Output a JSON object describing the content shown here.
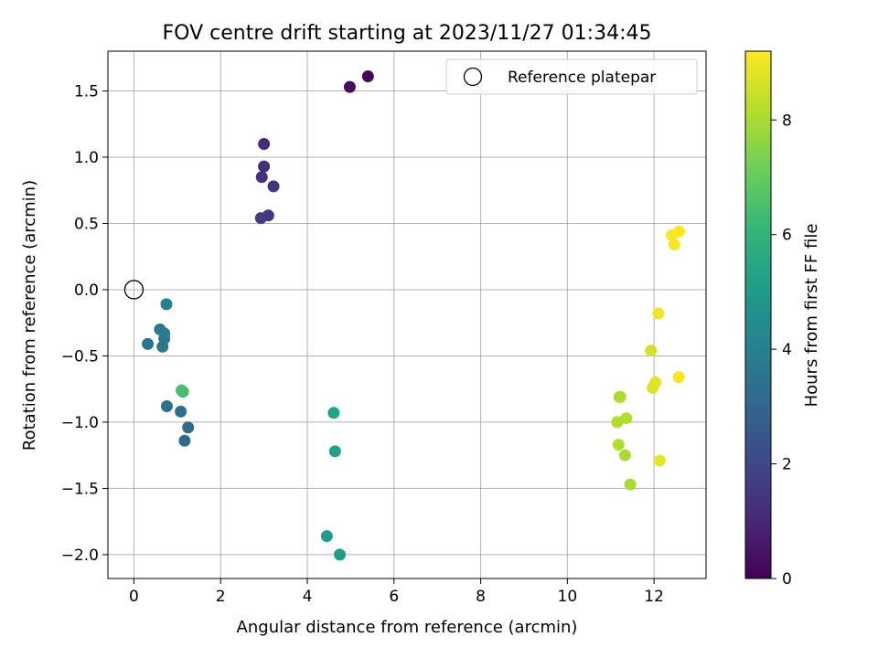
{
  "chart_data": {
    "type": "scatter",
    "title": "FOV centre drift starting at 2023/11/27 01:34:45",
    "xlabel": "Angular distance from reference (arcmin)",
    "ylabel": "Rotation from reference (arcmin)",
    "xlim": [
      -0.6,
      13.2
    ],
    "ylim": [
      -2.18,
      1.8
    ],
    "x_ticks": [
      0,
      2,
      4,
      6,
      8,
      10,
      12
    ],
    "y_ticks": [
      -2.0,
      -1.5,
      -1.0,
      -0.5,
      0.0,
      0.5,
      1.0,
      1.5
    ],
    "x_tick_labels": [
      "0",
      "2",
      "4",
      "6",
      "8",
      "10",
      "12"
    ],
    "y_tick_labels": [
      "−2.0",
      "−1.5",
      "−1.0",
      "−0.5",
      "0.0",
      "0.5",
      "1.0",
      "1.5"
    ],
    "grid": true,
    "legend": {
      "placement": "top-right",
      "entries": [
        {
          "label": "Reference platepar",
          "marker": "open-circle"
        }
      ]
    },
    "reference_point": {
      "x": 0,
      "y": 0
    },
    "colorbar": {
      "label": "Hours from first FF file",
      "colormap": "viridis",
      "range": [
        0,
        9.2
      ],
      "ticks": [
        0,
        2,
        4,
        6,
        8
      ],
      "tick_labels": [
        "0",
        "2",
        "4",
        "6",
        "8"
      ]
    },
    "points": [
      {
        "x": 5.4,
        "y": 1.61,
        "hours": 0.15
      },
      {
        "x": 4.98,
        "y": 1.53,
        "hours": 0.3
      },
      {
        "x": 3.0,
        "y": 1.1,
        "hours": 1.1
      },
      {
        "x": 3.0,
        "y": 0.93,
        "hours": 1.2
      },
      {
        "x": 2.95,
        "y": 0.85,
        "hours": 1.3
      },
      {
        "x": 3.22,
        "y": 0.78,
        "hours": 1.4
      },
      {
        "x": 3.1,
        "y": 0.56,
        "hours": 1.5
      },
      {
        "x": 2.93,
        "y": 0.54,
        "hours": 1.6
      },
      {
        "x": 1.17,
        "y": -1.14,
        "hours": 3.1
      },
      {
        "x": 1.25,
        "y": -1.04,
        "hours": 3.2
      },
      {
        "x": 1.08,
        "y": -0.92,
        "hours": 3.3
      },
      {
        "x": 0.76,
        "y": -0.88,
        "hours": 3.4
      },
      {
        "x": 0.32,
        "y": -0.41,
        "hours": 3.5
      },
      {
        "x": 0.66,
        "y": -0.43,
        "hours": 3.6
      },
      {
        "x": 0.7,
        "y": -0.37,
        "hours": 3.7
      },
      {
        "x": 0.6,
        "y": -0.3,
        "hours": 3.8
      },
      {
        "x": 0.7,
        "y": -0.33,
        "hours": 3.9
      },
      {
        "x": 0.75,
        "y": -0.11,
        "hours": 4.0
      },
      {
        "x": 4.45,
        "y": -1.86,
        "hours": 5.0
      },
      {
        "x": 4.75,
        "y": -2.0,
        "hours": 5.1
      },
      {
        "x": 4.64,
        "y": -1.22,
        "hours": 5.2
      },
      {
        "x": 4.61,
        "y": -0.93,
        "hours": 5.3
      },
      {
        "x": 1.13,
        "y": -0.77,
        "hours": 6.0
      },
      {
        "x": 1.1,
        "y": -0.76,
        "hours": 6.5
      },
      {
        "x": 11.45,
        "y": -1.47,
        "hours": 8.0
      },
      {
        "x": 11.33,
        "y": -1.25,
        "hours": 8.0
      },
      {
        "x": 11.18,
        "y": -1.17,
        "hours": 8.1
      },
      {
        "x": 11.36,
        "y": -0.97,
        "hours": 8.1
      },
      {
        "x": 11.15,
        "y": -1.0,
        "hours": 8.1
      },
      {
        "x": 11.22,
        "y": -0.81,
        "hours": 8.0
      },
      {
        "x": 11.2,
        "y": -0.81,
        "hours": 8.05
      },
      {
        "x": 11.93,
        "y": -0.46,
        "hours": 8.6
      },
      {
        "x": 11.97,
        "y": -0.74,
        "hours": 8.7
      },
      {
        "x": 12.03,
        "y": -0.7,
        "hours": 8.8
      },
      {
        "x": 12.13,
        "y": -1.29,
        "hours": 8.9
      },
      {
        "x": 12.1,
        "y": -0.18,
        "hours": 9.0
      },
      {
        "x": 12.57,
        "y": -0.66,
        "hours": 9.1
      },
      {
        "x": 12.47,
        "y": 0.34,
        "hours": 9.1
      },
      {
        "x": 12.41,
        "y": 0.41,
        "hours": 9.15
      },
      {
        "x": 12.58,
        "y": 0.44,
        "hours": 9.2
      }
    ]
  }
}
